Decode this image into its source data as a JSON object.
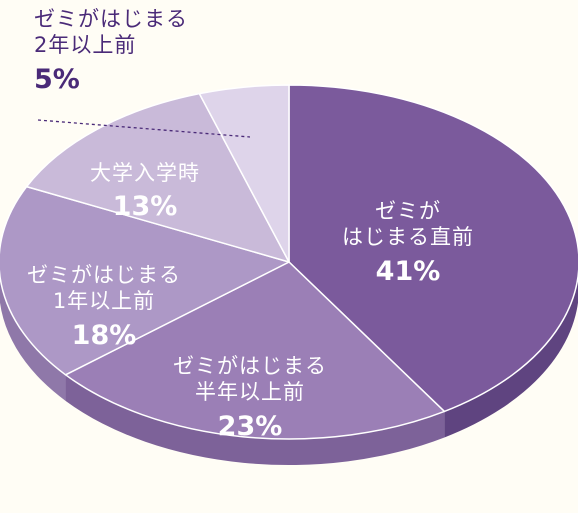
{
  "chart_data": {
    "type": "pie",
    "title": "",
    "categories": [
      "ゼミが\nはじまる直前",
      "ゼミがはじまる\n半年以上前",
      "ゼミがはじまる\n1年以上前",
      "大学入学時",
      "ゼミがはじまる\n2年以上前"
    ],
    "values": [
      41,
      23,
      18,
      13,
      5
    ],
    "labels": [
      "41%",
      "23%",
      "18%",
      "13%",
      "5%"
    ],
    "unit": "%",
    "colors": [
      "#7b5a9c",
      "#9b7fb6",
      "#ad98c6",
      "#c9bad9",
      "#ded4ea"
    ],
    "side_colors": [
      "#5f4480",
      "#7d6299",
      "#8f78a9",
      "#a897bf",
      "#bfb2d1"
    ],
    "legend": "none",
    "three_d": true
  }
}
